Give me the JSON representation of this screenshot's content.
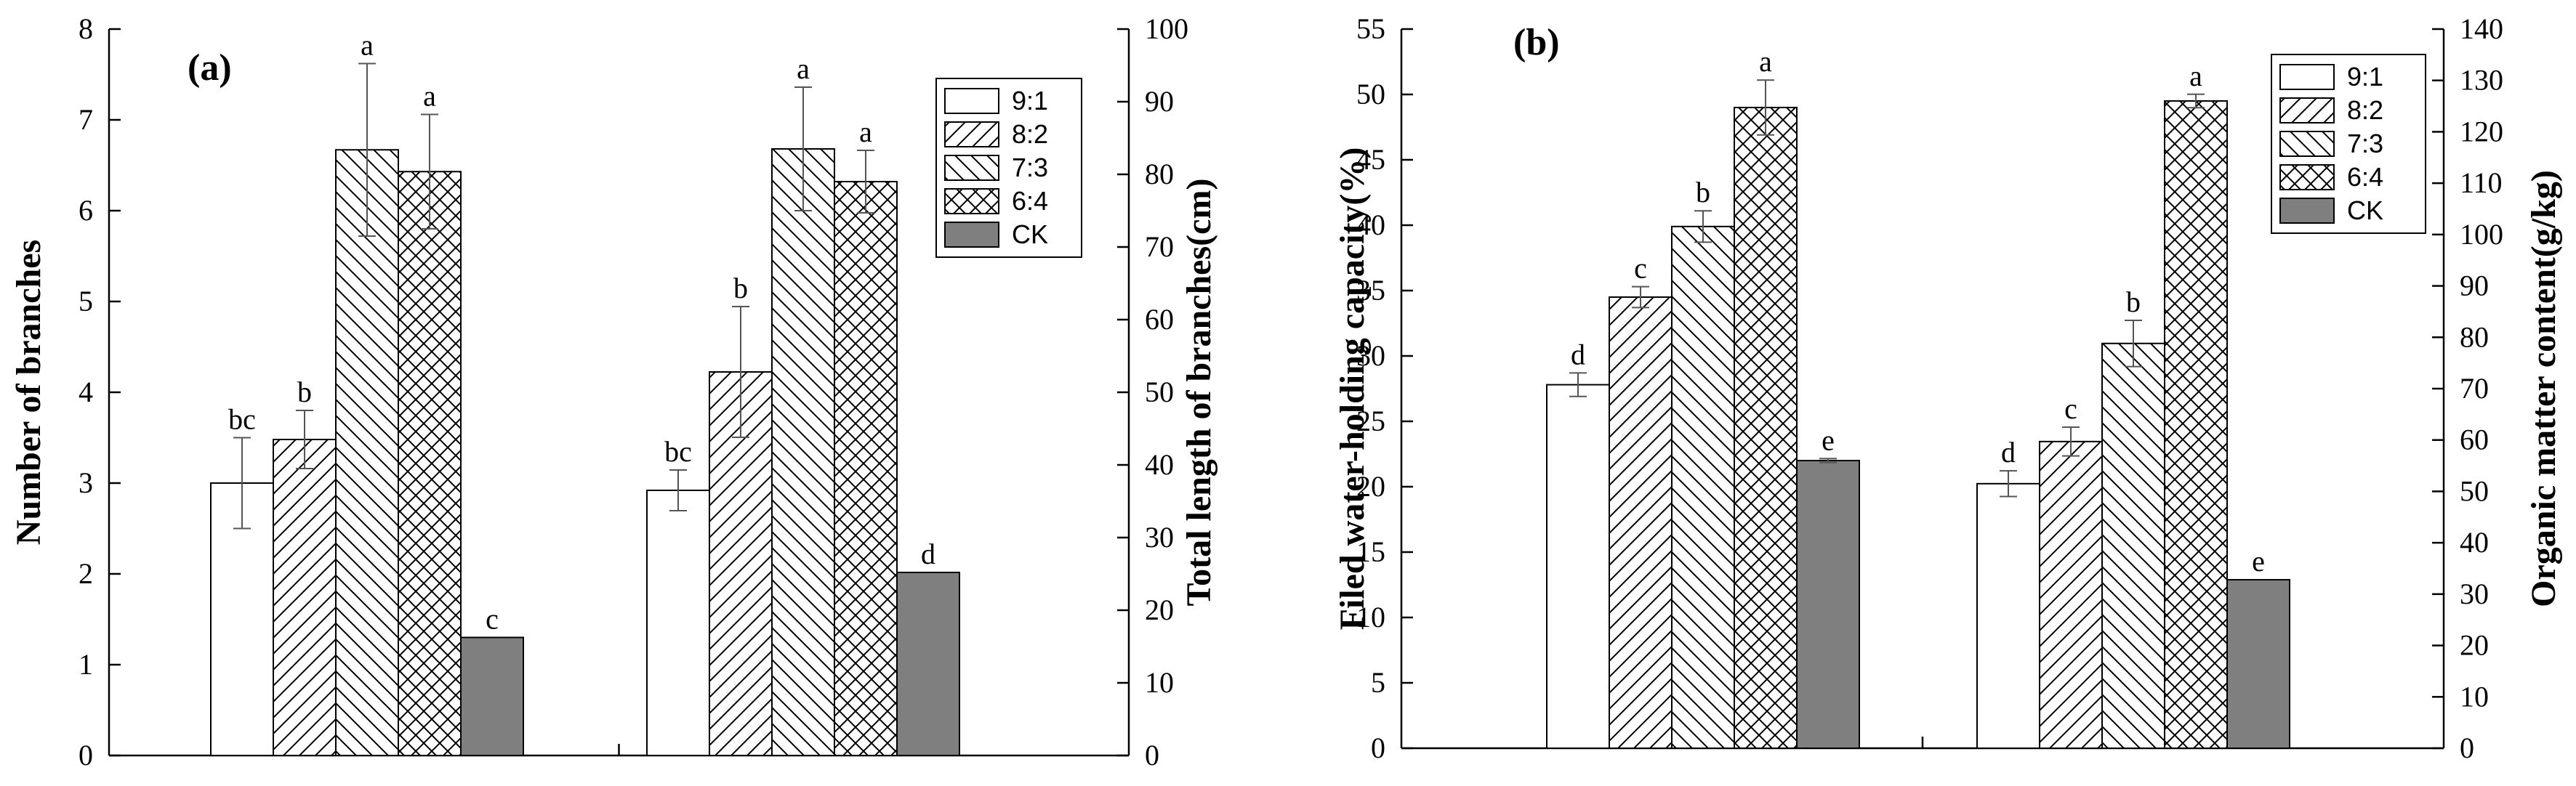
{
  "colors": {
    "ck_fill": "#7f7f7f",
    "stroke": "#000000",
    "background": "#ffffff"
  },
  "legend": [
    {
      "label": "9:1",
      "pattern": "none"
    },
    {
      "label": "8:2",
      "pattern": "diag-right"
    },
    {
      "label": "7:3",
      "pattern": "diag-left"
    },
    {
      "label": "6:4",
      "pattern": "cross"
    },
    {
      "label": "CK",
      "pattern": "solid"
    }
  ],
  "chart_data": [
    {
      "type": "bar",
      "panel_label": "(a)",
      "groups": [
        {
          "metric": "Number of branches",
          "axis": "left",
          "values": [
            3.0,
            3.48,
            6.67,
            6.43,
            1.3
          ],
          "errors": [
            0.5,
            0.32,
            0.95,
            0.63,
            0.0
          ],
          "letters": [
            "bc",
            "b",
            "a",
            "a",
            "c"
          ]
        },
        {
          "metric": "Total length of branches(cm)",
          "axis": "right",
          "values": [
            36.5,
            52.8,
            83.5,
            79.0,
            25.2
          ],
          "errors": [
            2.8,
            9.0,
            8.5,
            4.3,
            0.0
          ],
          "letters": [
            "bc",
            "b",
            "a",
            "a",
            "d"
          ]
        }
      ],
      "left_axis": {
        "title": "Number of branches",
        "ylim": [
          0,
          8
        ],
        "ticks": [
          "0",
          "1",
          "2",
          "3",
          "4",
          "5",
          "6",
          "7",
          "8"
        ]
      },
      "right_axis": {
        "title": "Total length of branches(cm)",
        "ylim": [
          0,
          100
        ],
        "ticks": [
          "0",
          "10",
          "20",
          "30",
          "40",
          "50",
          "60",
          "70",
          "80",
          "90",
          "100"
        ]
      }
    },
    {
      "type": "bar",
      "panel_label": "(b)",
      "groups": [
        {
          "metric": "Filed water-holding capacity(%)",
          "axis": "left",
          "values": [
            27.8,
            34.5,
            39.9,
            49.0,
            22.0
          ],
          "errors": [
            0.9,
            0.8,
            1.2,
            2.1,
            0.15
          ],
          "letters": [
            "d",
            "c",
            "b",
            "a",
            "e"
          ]
        },
        {
          "metric": "Organic matter content(g/kg)",
          "axis": "right",
          "values": [
            51.5,
            59.7,
            78.8,
            126.0,
            32.8
          ],
          "errors": [
            2.5,
            2.8,
            4.5,
            1.3,
            0.0
          ],
          "letters": [
            "d",
            "c",
            "b",
            "a",
            "e"
          ]
        }
      ],
      "left_axis": {
        "title": "Filed water-holding capacity(%)",
        "ylim": [
          0,
          55
        ],
        "ticks": [
          "0",
          "5",
          "10",
          "15",
          "20",
          "25",
          "30",
          "35",
          "40",
          "45",
          "50",
          "55"
        ]
      },
      "right_axis": {
        "title": "Organic matter content(g/kg)",
        "ylim": [
          0,
          140
        ],
        "ticks": [
          "0",
          "10",
          "20",
          "30",
          "40",
          "50",
          "60",
          "70",
          "80",
          "90",
          "100",
          "110",
          "120",
          "130",
          "140"
        ]
      }
    }
  ]
}
